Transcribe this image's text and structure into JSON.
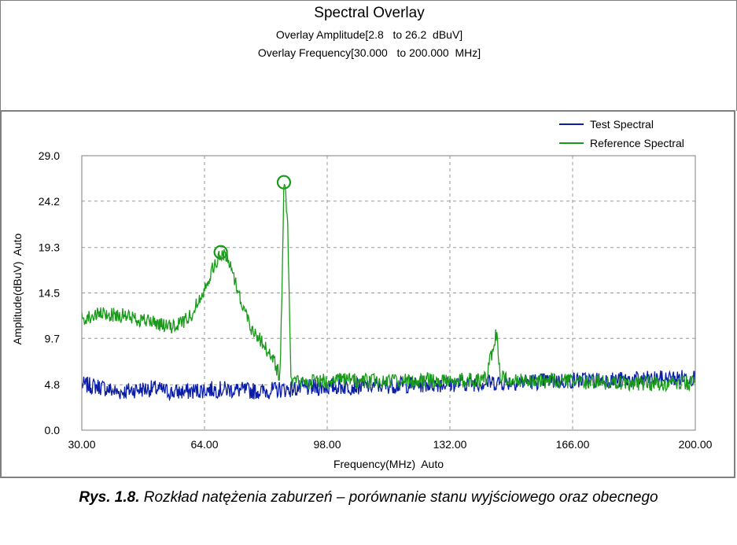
{
  "header": {
    "title": "Spectral Overlay",
    "subtitle1": "Overlay Amplitude[2.8   to 26.2  dBuV]",
    "subtitle2": "Overlay Frequency[30.000   to 200.000  MHz]"
  },
  "caption": {
    "label": "Rys. 1.8.",
    "text": " Rozkład natężenia zaburzeń – porównanie stanu wyjściowego oraz obecnego"
  },
  "colors": {
    "test": "#0a1ea8",
    "reference": "#1a9a1a",
    "grid": "#9a9a9a",
    "frame": "#7f7f7f"
  },
  "chart_data": {
    "type": "line",
    "title": "Spectral Overlay",
    "xlabel": "Frequency(MHz)  Auto",
    "ylabel": "Amplitude(dBuV)  Auto",
    "xlim": [
      30,
      200
    ],
    "ylim": [
      0,
      29
    ],
    "x_ticks": [
      "30.00",
      "64.00",
      "98.00",
      "132.00",
      "166.00",
      "200.00"
    ],
    "y_ticks": [
      "0.0",
      "4.8",
      "9.7",
      "14.5",
      "19.3",
      "24.2",
      "29.0"
    ],
    "grid": true,
    "legend_position": "top-right",
    "series": [
      {
        "name": "Test Spectral",
        "color": "#0a1ea8",
        "x": [
          30,
          35,
          40,
          45,
          50,
          55,
          60,
          65,
          70,
          75,
          80,
          85,
          90,
          95,
          100,
          110,
          120,
          130,
          140,
          150,
          160,
          170,
          180,
          190,
          200
        ],
        "y": [
          4.8,
          4.6,
          4.0,
          4.3,
          4.4,
          4.0,
          4.1,
          4.3,
          4.3,
          4.2,
          4.1,
          4.3,
          4.4,
          4.5,
          4.6,
          4.7,
          4.8,
          4.9,
          5.0,
          5.1,
          5.2,
          5.3,
          5.3,
          5.4,
          5.6
        ]
      },
      {
        "name": "Reference Spectral",
        "color": "#1a9a1a",
        "x": [
          30,
          35,
          40,
          45,
          50,
          55,
          60,
          63,
          66,
          68,
          70,
          72,
          74,
          77,
          80,
          83,
          84,
          85,
          86,
          87,
          88,
          90,
          95,
          100,
          110,
          120,
          130,
          140,
          142,
          145,
          146,
          148,
          150,
          160,
          170,
          180,
          190,
          200
        ],
        "y": [
          11.8,
          12.2,
          12.2,
          11.8,
          11.4,
          10.8,
          12.0,
          14.2,
          16.8,
          18.3,
          18.5,
          16.5,
          13.8,
          10.8,
          9.3,
          7.5,
          6.5,
          5.6,
          26.0,
          23.0,
          5.3,
          5.1,
          5.2,
          5.3,
          5.2,
          5.2,
          5.3,
          5.3,
          5.5,
          10.5,
          5.6,
          5.3,
          5.2,
          5.2,
          5.1,
          5.0,
          4.9,
          5.0
        ]
      }
    ],
    "peak_markers": [
      {
        "x": 68.5,
        "y": 18.8
      },
      {
        "x": 86.0,
        "y": 26.2
      }
    ]
  }
}
